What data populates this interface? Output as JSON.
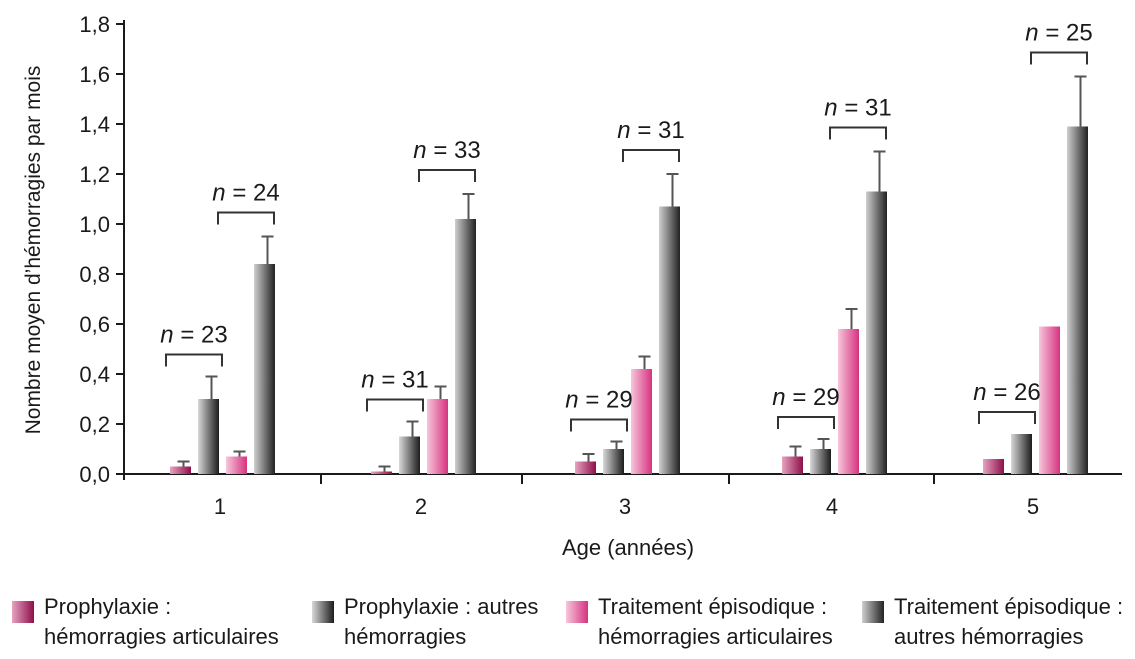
{
  "chart_data": {
    "type": "bar",
    "title": "",
    "xlabel": "Age  (années)",
    "ylabel": "Nombre moyen d’hémorragies par mois",
    "ylim": [
      0,
      1.8
    ],
    "yticks": [
      "0,0",
      "0,2",
      "0,4",
      "0,6",
      "0,8",
      "1,0",
      "1,2",
      "1,4",
      "1,6",
      "1,8"
    ],
    "categories": [
      "1",
      "2",
      "3",
      "4",
      "5"
    ],
    "series": [
      {
        "name": "Prophylaxie : hémorragies articulaires",
        "color": "#a8185a",
        "values": [
          0.03,
          0.01,
          0.05,
          0.07,
          0.06
        ],
        "errors": [
          0.02,
          0.02,
          0.03,
          0.04,
          0
        ]
      },
      {
        "name": "Prophylaxie : autres hémorragies",
        "color": "#3a3a3a",
        "values": [
          0.3,
          0.15,
          0.1,
          0.1,
          0.16
        ],
        "errors": [
          0.09,
          0.06,
          0.03,
          0.04,
          0
        ]
      },
      {
        "name": "Traitement épisodique : hémorragies articulaires",
        "color": "#e0559a",
        "values": [
          0.07,
          0.3,
          0.42,
          0.58,
          0.59
        ],
        "errors": [
          0.02,
          0.05,
          0.05,
          0.08,
          0
        ]
      },
      {
        "name": "Traitement épisodique : autres hémorragies",
        "color": "#4a4a4a",
        "values": [
          0.84,
          1.02,
          1.07,
          1.13,
          1.39
        ],
        "errors": [
          0.11,
          0.1,
          0.13,
          0.16,
          0.2
        ]
      }
    ],
    "annotations": [
      {
        "group": "1",
        "prophylaxie": "n = 23",
        "episodique": "n = 24"
      },
      {
        "group": "2",
        "prophylaxie": "n = 31",
        "episodique": "n = 33"
      },
      {
        "group": "3",
        "prophylaxie": "n = 29",
        "episodique": "n = 31"
      },
      {
        "group": "4",
        "prophylaxie": "n = 29",
        "episodique": "n = 31"
      },
      {
        "group": "5",
        "prophylaxie": "n = 26",
        "episodique": "n = 25"
      }
    ],
    "grid": false,
    "legend_position": "bottom"
  },
  "legend": [
    {
      "line1": "Prophylaxie :",
      "line2": "hémorragies articulaires",
      "color": "#a8185a"
    },
    {
      "line1": "Prophylaxie : autres",
      "line2": "hémorragies",
      "color": "#3a3a3a"
    },
    {
      "line1": "Traitement épisodique :",
      "line2": "hémorragies articulaires",
      "color": "#e0559a"
    },
    {
      "line1": "Traitement épisodique :",
      "line2": "autres hémorragies",
      "color": "#4a4a4a"
    }
  ]
}
